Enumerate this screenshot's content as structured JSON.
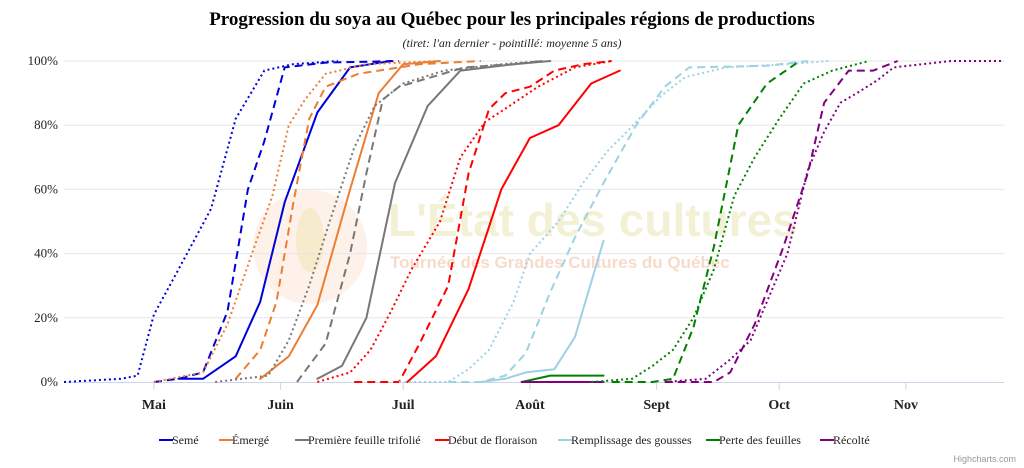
{
  "chart_data": {
    "type": "line",
    "title": "Progression du soya au Québec pour les principales régions de productions",
    "subtitle": "(tiret: l'an dernier - pointillé: moyenne 5 ans)",
    "xlabel": "",
    "ylabel": "",
    "x_ticks": [
      {
        "label": "Mai",
        "day": 0
      },
      {
        "label": "Juin",
        "day": 31
      },
      {
        "label": "Juil",
        "day": 61
      },
      {
        "label": "Août",
        "day": 92
      },
      {
        "label": "Sept",
        "day": 123
      },
      {
        "label": "Oct",
        "day": 153
      },
      {
        "label": "Nov",
        "day": 184
      }
    ],
    "xlim": [
      -22,
      208
    ],
    "ylim": [
      0,
      100
    ],
    "y_ticks": [
      "0%",
      "20%",
      "40%",
      "60%",
      "80%",
      "100%"
    ],
    "grid": "horizontal",
    "legend_position": "bottom",
    "credit": "Highcharts.com",
    "watermark": {
      "title": "L'État des cultures",
      "subtitle": "Tournée des Grandes Cultures du Québec"
    },
    "series": [
      {
        "name": "Semé",
        "color": "#0000dd",
        "points": [
          [
            6,
            1
          ],
          [
            12,
            1
          ],
          [
            20,
            8
          ],
          [
            26,
            25
          ],
          [
            32,
            56
          ],
          [
            40,
            84
          ],
          [
            48,
            98
          ],
          [
            58,
            100
          ]
        ]
      },
      {
        "name": "Émergé",
        "color": "#ed7d31",
        "points": [
          [
            26,
            1
          ],
          [
            33,
            8
          ],
          [
            40,
            24
          ],
          [
            48,
            60
          ],
          [
            55,
            90
          ],
          [
            61,
            99
          ],
          [
            70,
            100
          ]
        ]
      },
      {
        "name": "Première feuille trifolié",
        "color": "#777777",
        "points": [
          [
            40,
            1
          ],
          [
            46,
            5
          ],
          [
            52,
            20
          ],
          [
            59,
            62
          ],
          [
            67,
            86
          ],
          [
            75,
            97
          ],
          [
            88,
            99
          ],
          [
            97,
            100
          ]
        ]
      },
      {
        "name": "Début de floraison",
        "color": "#ff0000",
        "points": [
          [
            62,
            0
          ],
          [
            69,
            8
          ],
          [
            77,
            29
          ],
          [
            85,
            60
          ],
          [
            92,
            76
          ],
          [
            99,
            80
          ],
          [
            107,
            93
          ],
          [
            114,
            97
          ]
        ]
      },
      {
        "name": "Remplissage des gousses",
        "color": "#9dd1e3",
        "points": [
          [
            80,
            0
          ],
          [
            86,
            1
          ],
          [
            91,
            3
          ],
          [
            98,
            4
          ],
          [
            103,
            14
          ],
          [
            110,
            44
          ]
        ]
      },
      {
        "name": "Perte des feuilles",
        "color": "#008000",
        "points": [
          [
            90,
            0
          ],
          [
            97,
            2
          ],
          [
            104,
            2
          ],
          [
            110,
            2
          ]
        ]
      },
      {
        "name": "Récolté",
        "color": "#800080",
        "points": [
          [
            90,
            0
          ],
          [
            110,
            0
          ]
        ]
      },
      {
        "name": "Semé",
        "color": "#0000dd",
        "dashed": true,
        "points": [
          [
            0,
            0
          ],
          [
            6,
            1
          ],
          [
            12,
            3
          ],
          [
            18,
            22
          ],
          [
            23,
            60
          ],
          [
            27,
            75
          ],
          [
            32,
            98
          ],
          [
            42,
            99.5
          ],
          [
            60,
            100
          ]
        ]
      },
      {
        "name": "Émergé",
        "color": "#ed7d31",
        "dashed": true,
        "points": [
          [
            20,
            1
          ],
          [
            26,
            10
          ],
          [
            30,
            25
          ],
          [
            34,
            55
          ],
          [
            38,
            82
          ],
          [
            42,
            92
          ],
          [
            50,
            96
          ],
          [
            65,
            99
          ],
          [
            80,
            100
          ]
        ]
      },
      {
        "name": "Première feuille trifolié",
        "color": "#777777",
        "dashed": true,
        "points": [
          [
            35,
            0
          ],
          [
            42,
            12
          ],
          [
            48,
            40
          ],
          [
            52,
            65
          ],
          [
            56,
            88
          ],
          [
            60,
            92
          ],
          [
            68,
            95
          ],
          [
            76,
            98
          ],
          [
            88,
            99
          ],
          [
            95,
            100
          ]
        ]
      },
      {
        "name": "Début de floraison",
        "color": "#ff0000",
        "dashed": true,
        "points": [
          [
            49,
            0
          ],
          [
            60,
            0
          ],
          [
            65,
            12
          ],
          [
            72,
            30
          ],
          [
            77,
            65
          ],
          [
            82,
            85
          ],
          [
            86,
            90
          ],
          [
            92,
            92
          ],
          [
            98,
            97
          ],
          [
            105,
            99
          ],
          [
            112,
            100
          ]
        ]
      },
      {
        "name": "Remplissage des gousses",
        "color": "#9dd1e3",
        "dashed": true,
        "points": [
          [
            72,
            0
          ],
          [
            80,
            0
          ],
          [
            86,
            2
          ],
          [
            91,
            9
          ],
          [
            97,
            28
          ],
          [
            103,
            45
          ],
          [
            110,
            62
          ],
          [
            118,
            80
          ],
          [
            125,
            92
          ],
          [
            131,
            98
          ],
          [
            150,
            98.5
          ],
          [
            160,
            100
          ]
        ]
      },
      {
        "name": "Perte des feuilles",
        "color": "#008000",
        "dashed": true,
        "points": [
          [
            112,
            0
          ],
          [
            122,
            0
          ],
          [
            127,
            1
          ],
          [
            132,
            17
          ],
          [
            137,
            42
          ],
          [
            143,
            80
          ],
          [
            150,
            93
          ],
          [
            158,
            100
          ]
        ]
      },
      {
        "name": "Récolté",
        "color": "#800080",
        "dashed": true,
        "points": [
          [
            125,
            0
          ],
          [
            137,
            0
          ],
          [
            141,
            3
          ],
          [
            147,
            18
          ],
          [
            154,
            42
          ],
          [
            160,
            65
          ],
          [
            164,
            87
          ],
          [
            170,
            97
          ],
          [
            176,
            97
          ],
          [
            182,
            100
          ]
        ]
      },
      {
        "name": "Semé",
        "color": "#0000dd",
        "dotted": true,
        "points": [
          [
            -22,
            0
          ],
          [
            -8,
            1
          ],
          [
            -4,
            2
          ],
          [
            0,
            21
          ],
          [
            6,
            35
          ],
          [
            14,
            54
          ],
          [
            20,
            82
          ],
          [
            27,
            97
          ],
          [
            34,
            99
          ],
          [
            45,
            100
          ]
        ]
      },
      {
        "name": "Émergé",
        "color": "#ed7d31",
        "dotted": true,
        "points": [
          [
            0,
            0
          ],
          [
            12,
            3
          ],
          [
            18,
            18
          ],
          [
            24,
            40
          ],
          [
            29,
            58
          ],
          [
            33,
            80
          ],
          [
            37,
            88
          ],
          [
            42,
            96
          ],
          [
            52,
            99
          ],
          [
            70,
            100
          ]
        ]
      },
      {
        "name": "Première feuille trifolié",
        "color": "#777777",
        "dotted": true,
        "points": [
          [
            15,
            0
          ],
          [
            28,
            2
          ],
          [
            33,
            13
          ],
          [
            38,
            30
          ],
          [
            43,
            50
          ],
          [
            49,
            73
          ],
          [
            54,
            86
          ],
          [
            61,
            93
          ],
          [
            71,
            97
          ],
          [
            85,
            99
          ],
          [
            95,
            100
          ]
        ]
      },
      {
        "name": "Début de floraison",
        "color": "#ff0000",
        "dotted": true,
        "points": [
          [
            40,
            0
          ],
          [
            48,
            3
          ],
          [
            53,
            10
          ],
          [
            58,
            22
          ],
          [
            63,
            35
          ],
          [
            70,
            50
          ],
          [
            75,
            70
          ],
          [
            81,
            81
          ],
          [
            87,
            86
          ],
          [
            94,
            92
          ],
          [
            103,
            98
          ],
          [
            112,
            100
          ]
        ]
      },
      {
        "name": "Remplissage des gousses",
        "color": "#9dd1e3",
        "dotted": true,
        "points": [
          [
            60,
            0
          ],
          [
            72,
            0
          ],
          [
            77,
            4
          ],
          [
            82,
            10
          ],
          [
            88,
            25
          ],
          [
            92,
            40
          ],
          [
            99,
            50
          ],
          [
            105,
            62
          ],
          [
            111,
            72
          ],
          [
            115,
            77
          ],
          [
            124,
            89
          ],
          [
            130,
            95
          ],
          [
            140,
            98
          ],
          [
            155,
            99
          ],
          [
            165,
            100
          ]
        ]
      },
      {
        "name": "Perte des feuilles",
        "color": "#008000",
        "dotted": true,
        "points": [
          [
            107,
            0
          ],
          [
            117,
            1
          ],
          [
            122,
            5
          ],
          [
            127,
            10
          ],
          [
            132,
            20
          ],
          [
            137,
            35
          ],
          [
            142,
            58
          ],
          [
            147,
            70
          ],
          [
            153,
            82
          ],
          [
            159,
            93
          ],
          [
            166,
            97
          ],
          [
            175,
            100
          ]
        ]
      },
      {
        "name": "Récolté",
        "color": "#800080",
        "dotted": true,
        "points": [
          [
            125,
            0
          ],
          [
            135,
            1
          ],
          [
            141,
            7
          ],
          [
            146,
            13
          ],
          [
            151,
            28
          ],
          [
            155,
            40
          ],
          [
            160,
            66
          ],
          [
            164,
            78
          ],
          [
            168,
            87
          ],
          [
            172,
            90
          ],
          [
            177,
            94
          ],
          [
            181,
            98
          ],
          [
            195,
            100
          ],
          [
            208,
            100
          ]
        ]
      }
    ]
  }
}
